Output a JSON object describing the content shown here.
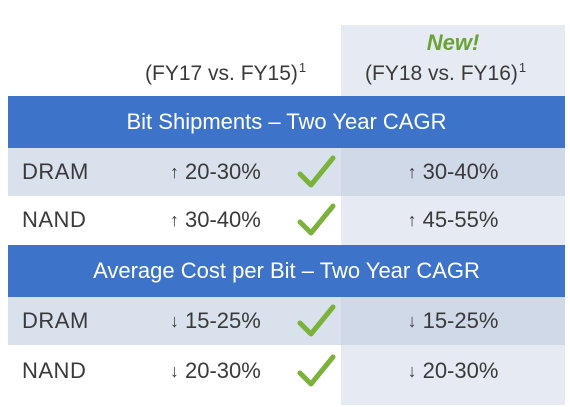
{
  "header": {
    "new_label": "New!",
    "col1": {
      "text": "(FY17 vs. FY15)",
      "sup": "1"
    },
    "col2": {
      "text": "(FY18 vs. FY16)",
      "sup": "1"
    }
  },
  "sections": [
    {
      "title": "Bit Shipments – Two Year CAGR",
      "rows": [
        {
          "label": "DRAM",
          "col1": "20-30%",
          "col1_dir": "↑",
          "col2": "30-40%",
          "col2_dir": "↑",
          "check": "check-icon"
        },
        {
          "label": "NAND",
          "col1": "30-40%",
          "col1_dir": "↑",
          "col2": "45-55%",
          "col2_dir": "↑",
          "check": "check-icon"
        }
      ]
    },
    {
      "title": "Average Cost per Bit – Two Year CAGR",
      "rows": [
        {
          "label": "DRAM",
          "col1": "15-25%",
          "col1_dir": "↓",
          "col2": "15-25%",
          "col2_dir": "↓",
          "check": "check-icon"
        },
        {
          "label": "NAND",
          "col1": "20-30%",
          "col1_dir": "↓",
          "col2": "20-30%",
          "col2_dir": "↓",
          "check": "check-icon"
        }
      ]
    }
  ],
  "colors": {
    "band": "#3d74c9",
    "new": "#6aa335",
    "check": "#7bb23a",
    "new_column_bg": "#e6ebf3"
  }
}
